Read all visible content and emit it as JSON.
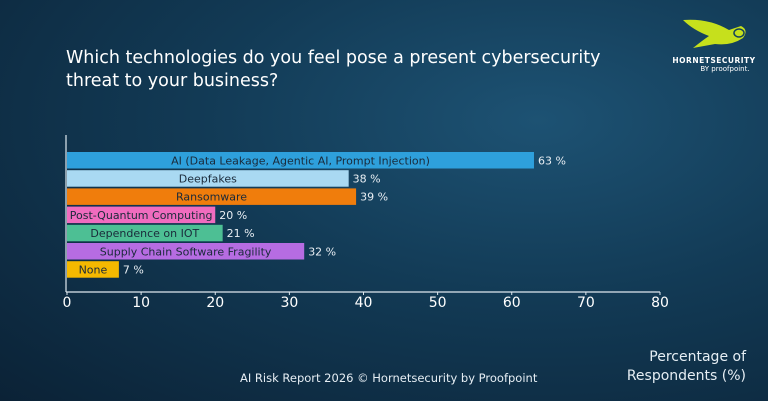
{
  "title": "Which technologies do you feel pose a present cybersecurity threat to your business?",
  "logo": {
    "brand": "HORNETSECURITY",
    "by": "BY proofpoint."
  },
  "footer": "AI Risk Report 2026 © Hornetsecurity by Proofpoint",
  "chart_data": {
    "type": "bar",
    "orientation": "horizontal",
    "categories": [
      "AI (Data Leakage, Agentic AI, Prompt Injection)",
      "Deepfakes",
      "Ransomware",
      "Post-Quantum Computing",
      "Dependence on IOT",
      "Supply Chain Software Fragility",
      "None"
    ],
    "values": [
      63,
      38,
      39,
      20,
      21,
      32,
      7
    ],
    "data_labels": [
      "63 %",
      "38 %",
      "39 %",
      "20 %",
      "21 %",
      "32 %",
      "7 %"
    ],
    "colors": [
      "#2ea0dc",
      "#a9d9f2",
      "#f07d0c",
      "#f06cbf",
      "#4dbf94",
      "#b66ce2",
      "#f5b900"
    ],
    "xlabel": "Percentage of Respondents (%)",
    "xlim": [
      0,
      80
    ],
    "xticks": [
      0,
      10,
      20,
      30,
      40,
      50,
      60,
      70,
      80
    ],
    "grid": false
  }
}
